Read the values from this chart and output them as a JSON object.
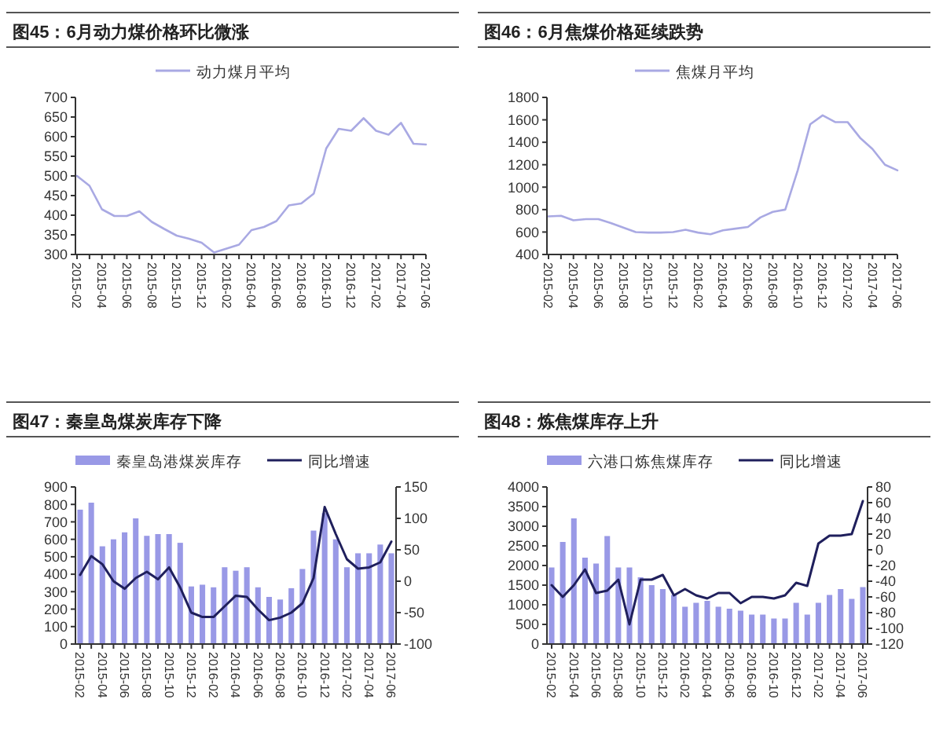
{
  "chart_data": [
    {
      "type": "line",
      "title": "图45：6月动力煤价格环比微涨",
      "categories": [
        "2015-02",
        null,
        "2015-04",
        null,
        "2015-06",
        null,
        "2015-08",
        null,
        "2015-10",
        null,
        "2015-12",
        null,
        "2016-02",
        null,
        "2016-04",
        null,
        "2016-06",
        null,
        "2016-08",
        null,
        "2016-10",
        null,
        "2016-12",
        null,
        "2017-02",
        null,
        "2017-04",
        null,
        "2017-06"
      ],
      "ylim": [
        300,
        700
      ],
      "yticks": [
        300,
        350,
        400,
        450,
        500,
        550,
        600,
        650,
        700
      ],
      "legend": "top",
      "grid": false,
      "series": [
        {
          "name": "动力煤月平均",
          "color": "#a9a9e3",
          "values": [
            500,
            475,
            415,
            398,
            398,
            410,
            383,
            365,
            348,
            340,
            330,
            305,
            315,
            325,
            362,
            370,
            385,
            425,
            430,
            455,
            570,
            620,
            615,
            647,
            615,
            605,
            635,
            582,
            580
          ]
        }
      ]
    },
    {
      "type": "line",
      "title": "图46：6月焦煤价格延续跌势",
      "categories": [
        "2015-02",
        null,
        "2015-04",
        null,
        "2015-06",
        null,
        "2015-08",
        null,
        "2015-10",
        null,
        "2015-12",
        null,
        "2016-02",
        null,
        "2016-04",
        null,
        "2016-06",
        null,
        "2016-08",
        null,
        "2016-10",
        null,
        "2016-12",
        null,
        "2017-02",
        null,
        "2017-04",
        null,
        "2017-06"
      ],
      "ylim": [
        400,
        1800
      ],
      "yticks": [
        400,
        600,
        800,
        1000,
        1200,
        1400,
        1600,
        1800
      ],
      "legend": "top",
      "grid": false,
      "series": [
        {
          "name": "焦煤月平均",
          "color": "#a9a9e3",
          "values": [
            740,
            745,
            705,
            715,
            715,
            680,
            640,
            600,
            595,
            595,
            600,
            620,
            595,
            580,
            615,
            630,
            645,
            730,
            780,
            800,
            1150,
            1560,
            1640,
            1580,
            1580,
            1440,
            1340,
            1200,
            1150
          ]
        }
      ]
    },
    {
      "type": "bar",
      "title": "图47：秦皇岛煤炭库存下降",
      "categories": [
        "2015-02",
        null,
        "2015-04",
        null,
        "2015-06",
        null,
        "2015-08",
        null,
        "2015-10",
        null,
        "2015-12",
        null,
        "2016-02",
        null,
        "2016-04",
        null,
        "2016-06",
        null,
        "2016-08",
        null,
        "2016-10",
        null,
        "2016-12",
        null,
        "2017-02",
        null,
        "2017-04",
        null,
        "2017-06"
      ],
      "ylim": [
        0,
        900
      ],
      "yticks": [
        0,
        100,
        200,
        300,
        400,
        500,
        600,
        700,
        800,
        900
      ],
      "y2lim": [
        -100,
        150
      ],
      "y2ticks": [
        -100,
        -50,
        0,
        50,
        100,
        150
      ],
      "legend": "top",
      "grid": false,
      "series": [
        {
          "name": "秦皇岛港煤炭库存",
          "color": "#9999e6",
          "values": [
            770,
            810,
            560,
            600,
            640,
            720,
            620,
            630,
            630,
            580,
            330,
            340,
            325,
            440,
            420,
            440,
            325,
            270,
            255,
            320,
            430,
            650,
            750,
            600,
            440,
            520,
            520,
            570,
            520
          ]
        },
        {
          "name": "同比增速",
          "type": "line",
          "axis": "y2",
          "color": "#1f1f5c",
          "values": [
            10,
            40,
            27,
            0,
            -12,
            5,
            15,
            3,
            22,
            -10,
            -50,
            -57,
            -57,
            -40,
            -23,
            -25,
            -45,
            -62,
            -58,
            -50,
            -35,
            5,
            118,
            75,
            35,
            20,
            22,
            30,
            63
          ]
        }
      ]
    },
    {
      "type": "bar",
      "title": "图48：炼焦煤库存上升",
      "categories": [
        "2015-02",
        null,
        "2015-04",
        null,
        "2015-06",
        null,
        "2015-08",
        null,
        "2015-10",
        null,
        "2015-12",
        null,
        "2016-02",
        null,
        "2016-04",
        null,
        "2016-06",
        null,
        "2016-08",
        null,
        "2016-10",
        null,
        "2016-12",
        null,
        "2017-02",
        null,
        "2017-04",
        null,
        "2017-06"
      ],
      "ylim": [
        0,
        4000
      ],
      "yticks": [
        0,
        500,
        1000,
        1500,
        2000,
        2500,
        3000,
        3500,
        4000
      ],
      "y2lim": [
        -120,
        80
      ],
      "y2ticks": [
        -120,
        -100,
        -80,
        -60,
        -40,
        -20,
        0,
        20,
        40,
        60,
        80
      ],
      "legend": "top",
      "grid": false,
      "series": [
        {
          "name": "六港口炼焦煤库存",
          "color": "#9999e6",
          "values": [
            1950,
            2600,
            3200,
            2200,
            2050,
            2750,
            1950,
            1950,
            1700,
            1500,
            1400,
            1250,
            950,
            1050,
            1100,
            950,
            900,
            850,
            750,
            750,
            650,
            650,
            1050,
            750,
            1050,
            1250,
            1400,
            1150,
            1450
          ]
        },
        {
          "name": "同比增速",
          "type": "line",
          "axis": "y2",
          "color": "#1f1f5c",
          "values": [
            -45,
            -60,
            -45,
            -25,
            -55,
            -52,
            -38,
            -95,
            -38,
            -38,
            -32,
            -58,
            -50,
            -58,
            -62,
            -55,
            -55,
            -68,
            -60,
            -60,
            -62,
            -58,
            -42,
            -46,
            8,
            18,
            18,
            20,
            62
          ]
        }
      ]
    }
  ]
}
